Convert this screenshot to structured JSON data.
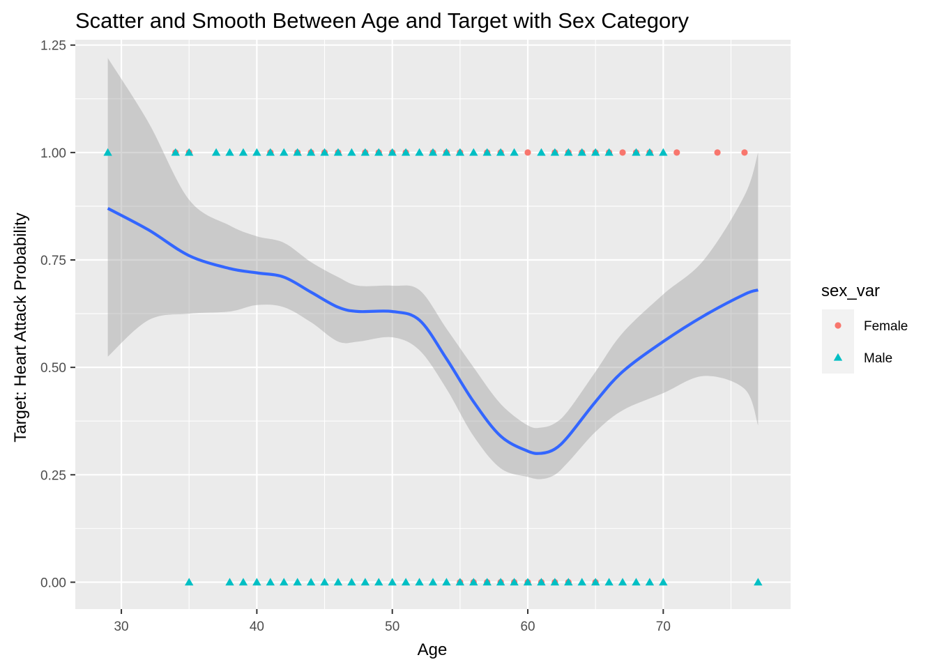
{
  "chart_data": {
    "type": "scatter",
    "title": "Scatter and Smooth Between Age and Target with Sex Category",
    "xlabel": "Age",
    "ylabel": "Target: Heart Attack Probability",
    "xlim": [
      26.6,
      79.4
    ],
    "ylim": [
      -0.0625,
      1.2625
    ],
    "x_ticks": [
      30,
      40,
      50,
      60,
      70
    ],
    "y_ticks": [
      0.0,
      0.25,
      0.5,
      0.75,
      1.0,
      1.25
    ],
    "x_tick_labels": [
      "30",
      "40",
      "50",
      "60",
      "70"
    ],
    "y_tick_labels": [
      "0.00",
      "0.25",
      "0.50",
      "0.75",
      "1.00",
      "1.25"
    ],
    "grid": true,
    "legend": {
      "title": "sex_var",
      "position": "right",
      "entries": [
        {
          "name": "Female",
          "color": "#F8766D",
          "shape": "circle"
        },
        {
          "name": "Male",
          "color": "#00BFC4",
          "shape": "triangle"
        }
      ]
    },
    "series": [
      {
        "name": "Female",
        "color": "#F8766D",
        "shape": "circle",
        "points": [
          [
            34,
            1
          ],
          [
            35,
            1
          ],
          [
            41,
            1
          ],
          [
            43,
            1
          ],
          [
            44,
            1
          ],
          [
            45,
            1
          ],
          [
            46,
            1
          ],
          [
            48,
            1
          ],
          [
            49,
            1
          ],
          [
            50,
            1
          ],
          [
            51,
            1
          ],
          [
            53,
            1
          ],
          [
            54,
            1
          ],
          [
            55,
            1
          ],
          [
            57,
            1
          ],
          [
            58,
            1
          ],
          [
            60,
            1
          ],
          [
            62,
            1
          ],
          [
            63,
            1
          ],
          [
            64,
            1
          ],
          [
            65,
            1
          ],
          [
            66,
            1
          ],
          [
            67,
            1
          ],
          [
            68,
            1
          ],
          [
            69,
            1
          ],
          [
            71,
            1
          ],
          [
            74,
            1
          ],
          [
            76,
            1
          ],
          [
            55,
            0
          ],
          [
            56,
            0
          ],
          [
            57,
            0
          ],
          [
            58,
            0
          ],
          [
            59,
            0
          ],
          [
            60,
            0
          ],
          [
            61,
            0
          ],
          [
            62,
            0
          ],
          [
            63,
            0
          ],
          [
            65,
            0
          ]
        ]
      },
      {
        "name": "Male",
        "color": "#00BFC4",
        "shape": "triangle",
        "points": [
          [
            29,
            1
          ],
          [
            34,
            1
          ],
          [
            35,
            1
          ],
          [
            37,
            1
          ],
          [
            38,
            1
          ],
          [
            39,
            1
          ],
          [
            40,
            1
          ],
          [
            41,
            1
          ],
          [
            42,
            1
          ],
          [
            43,
            1
          ],
          [
            44,
            1
          ],
          [
            45,
            1
          ],
          [
            46,
            1
          ],
          [
            47,
            1
          ],
          [
            48,
            1
          ],
          [
            49,
            1
          ],
          [
            50,
            1
          ],
          [
            51,
            1
          ],
          [
            52,
            1
          ],
          [
            53,
            1
          ],
          [
            54,
            1
          ],
          [
            55,
            1
          ],
          [
            56,
            1
          ],
          [
            57,
            1
          ],
          [
            58,
            1
          ],
          [
            59,
            1
          ],
          [
            61,
            1
          ],
          [
            62,
            1
          ],
          [
            63,
            1
          ],
          [
            64,
            1
          ],
          [
            65,
            1
          ],
          [
            66,
            1
          ],
          [
            68,
            1
          ],
          [
            69,
            1
          ],
          [
            70,
            1
          ],
          [
            35,
            0
          ],
          [
            38,
            0
          ],
          [
            39,
            0
          ],
          [
            40,
            0
          ],
          [
            41,
            0
          ],
          [
            42,
            0
          ],
          [
            43,
            0
          ],
          [
            44,
            0
          ],
          [
            45,
            0
          ],
          [
            46,
            0
          ],
          [
            47,
            0
          ],
          [
            48,
            0
          ],
          [
            49,
            0
          ],
          [
            50,
            0
          ],
          [
            51,
            0
          ],
          [
            52,
            0
          ],
          [
            53,
            0
          ],
          [
            54,
            0
          ],
          [
            55,
            0
          ],
          [
            56,
            0
          ],
          [
            57,
            0
          ],
          [
            58,
            0
          ],
          [
            59,
            0
          ],
          [
            60,
            0
          ],
          [
            61,
            0
          ],
          [
            62,
            0
          ],
          [
            63,
            0
          ],
          [
            64,
            0
          ],
          [
            65,
            0
          ],
          [
            66,
            0
          ],
          [
            67,
            0
          ],
          [
            68,
            0
          ],
          [
            69,
            0
          ],
          [
            70,
            0
          ],
          [
            77,
            0
          ]
        ]
      }
    ],
    "smooth": {
      "color": "#3366FF",
      "band_color": "#999999",
      "x": [
        29,
        32,
        35,
        38,
        40,
        42,
        44,
        46,
        47.5,
        50,
        52,
        54,
        56,
        58,
        60,
        61,
        62,
        63,
        65,
        67,
        70,
        73,
        76,
        77
      ],
      "y": [
        0.87,
        0.82,
        0.76,
        0.73,
        0.72,
        0.71,
        0.675,
        0.64,
        0.63,
        0.63,
        0.61,
        0.52,
        0.42,
        0.34,
        0.305,
        0.3,
        0.31,
        0.34,
        0.42,
        0.49,
        0.56,
        0.62,
        0.67,
        0.68
      ],
      "lower": [
        0.525,
        0.61,
        0.625,
        0.63,
        0.645,
        0.64,
        0.605,
        0.56,
        0.56,
        0.57,
        0.54,
        0.45,
        0.34,
        0.265,
        0.245,
        0.24,
        0.25,
        0.28,
        0.35,
        0.4,
        0.44,
        0.48,
        0.45,
        0.365
      ],
      "upper": [
        1.22,
        1.07,
        0.89,
        0.83,
        0.805,
        0.79,
        0.745,
        0.71,
        0.69,
        0.69,
        0.68,
        0.59,
        0.5,
        0.415,
        0.365,
        0.36,
        0.37,
        0.4,
        0.49,
        0.58,
        0.67,
        0.75,
        0.9,
        1.0
      ]
    }
  }
}
